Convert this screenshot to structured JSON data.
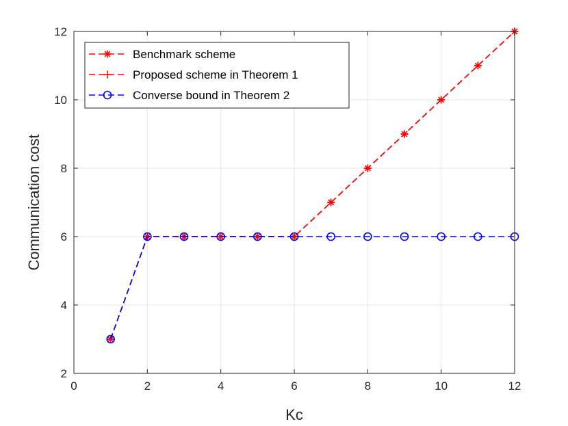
{
  "chart_data": {
    "type": "line",
    "xlabel": "Kc",
    "ylabel": "Communication cost",
    "xlim": [
      0,
      12
    ],
    "ylim": [
      2,
      12
    ],
    "xticks": [
      0,
      2,
      4,
      6,
      8,
      10,
      12
    ],
    "yticks": [
      2,
      4,
      6,
      8,
      10,
      12
    ],
    "grid": true,
    "legend_position": "top-left",
    "series": [
      {
        "name": "Benchmark scheme",
        "color": "#ff0000",
        "marker": "asterisk",
        "line_style": "dashed",
        "x": [
          1,
          2,
          3,
          4,
          5,
          6,
          7,
          8,
          9,
          10,
          11,
          12
        ],
        "y": [
          3,
          6,
          6,
          6,
          6,
          6,
          7,
          8,
          9,
          10,
          11,
          12
        ]
      },
      {
        "name": "Proposed scheme in Theorem 1",
        "color": "#ff0000",
        "marker": "plus",
        "line_style": "dashed",
        "x": [
          1,
          2,
          3,
          4,
          5,
          6,
          7,
          8,
          9,
          10,
          11,
          12
        ],
        "y": [
          3,
          6,
          6,
          6,
          6,
          6,
          7,
          8,
          9,
          10,
          11,
          12
        ]
      },
      {
        "name": "Converse bound in Theorem 2",
        "color": "#0000ff",
        "marker": "circle",
        "line_style": "dashed",
        "x": [
          1,
          2,
          3,
          4,
          5,
          6,
          7,
          8,
          9,
          10,
          11,
          12
        ],
        "y": [
          3,
          6,
          6,
          6,
          6,
          6,
          6,
          6,
          6,
          6,
          6,
          6
        ]
      }
    ]
  }
}
